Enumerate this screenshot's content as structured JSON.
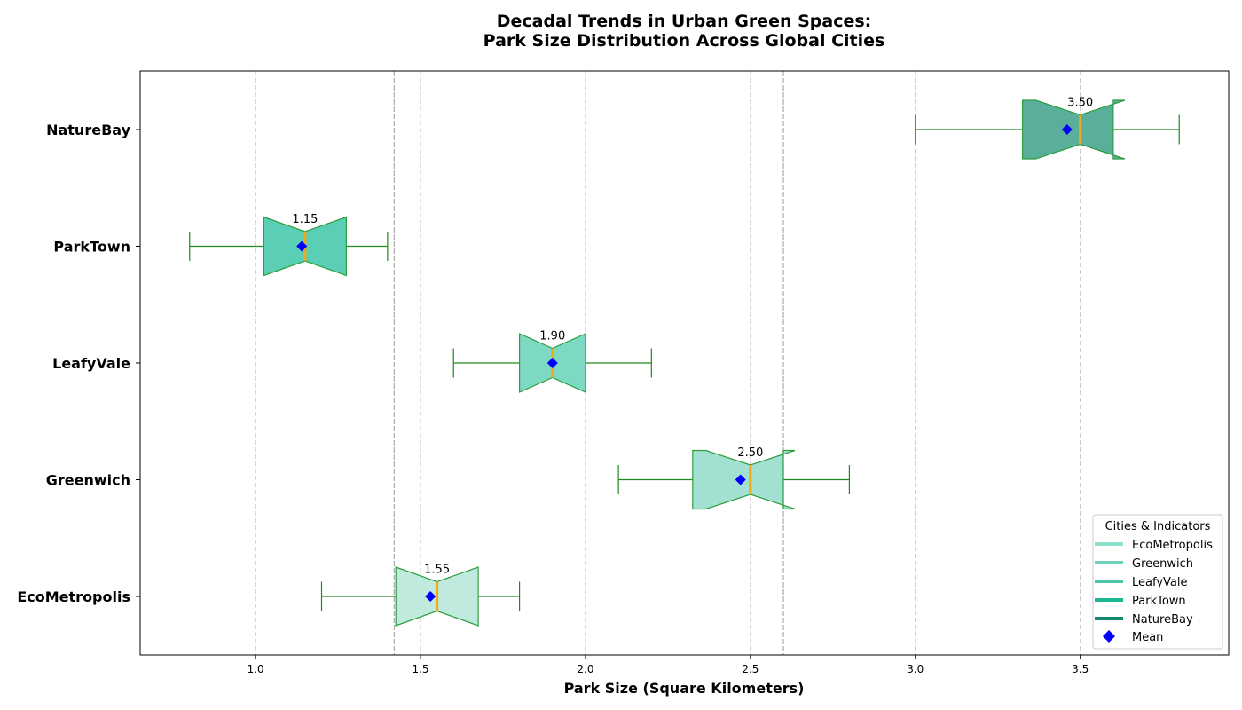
{
  "chart_data": {
    "type": "boxplot",
    "orientation": "horizontal",
    "title_line1": "Decadal Trends in Urban Green Spaces:",
    "title_line2": "Park Size Distribution Across Global Cities",
    "xlabel": "Park Size (Square Kilometers)",
    "xlim": [
      0.65,
      3.95
    ],
    "xticks": [
      "1.0",
      "1.5",
      "2.0",
      "2.5",
      "3.0",
      "3.5"
    ],
    "xtick_values": [
      1.0,
      1.5,
      2.0,
      2.5,
      3.0,
      3.5
    ],
    "grid": "x-dashed",
    "reference_lines": [
      1.42,
      2.6
    ],
    "series": [
      {
        "name": "EcoMetropolis",
        "whislo": 1.2,
        "q1": 1.425,
        "med": 1.55,
        "q3": 1.675,
        "whishi": 1.8,
        "mean": 1.53,
        "notch_lo": 1.425,
        "notch_hi": 1.675,
        "median_label": "1.55",
        "color": "#bfeadd",
        "legend_color": "#8fe0cc"
      },
      {
        "name": "Greenwich",
        "whislo": 2.1,
        "q1": 2.325,
        "med": 2.5,
        "q3": 2.6,
        "whishi": 2.8,
        "mean": 2.47,
        "notch_lo": 2.365,
        "notch_hi": 2.635,
        "median_label": "2.50",
        "color": "#a2e0d2",
        "legend_color": "#6dd0bc"
      },
      {
        "name": "LeafyVale",
        "whislo": 1.6,
        "q1": 1.8,
        "med": 1.9,
        "q3": 2.0,
        "whishi": 2.2,
        "mean": 1.9,
        "notch_lo": 1.8,
        "notch_hi": 2.0,
        "median_label": "1.90",
        "color": "#7dd9c2",
        "legend_color": "#4cc5aa"
      },
      {
        "name": "ParkTown",
        "whislo": 0.8,
        "q1": 1.025,
        "med": 1.15,
        "q3": 1.275,
        "whishi": 1.4,
        "mean": 1.14,
        "notch_lo": 1.025,
        "notch_hi": 1.275,
        "median_label": "1.15",
        "color": "#5bcfb5",
        "legend_color": "#1fb896"
      },
      {
        "name": "NatureBay",
        "whislo": 3.0,
        "q1": 3.325,
        "med": 3.5,
        "q3": 3.6,
        "whishi": 3.8,
        "mean": 3.46,
        "notch_lo": 3.365,
        "notch_hi": 3.635,
        "median_label": "3.50",
        "color": "#5aaf9b",
        "legend_color": "#178671"
      }
    ],
    "legend": {
      "title": "Cities & Indicators",
      "position": "lower-right",
      "mean_label": "Mean"
    },
    "colors": {
      "edge": "#2e9e3e",
      "whisker": "#1e8a1e",
      "median": "#f0a81c",
      "mean": "#0000ff",
      "grid": "#c0c0c0"
    }
  }
}
